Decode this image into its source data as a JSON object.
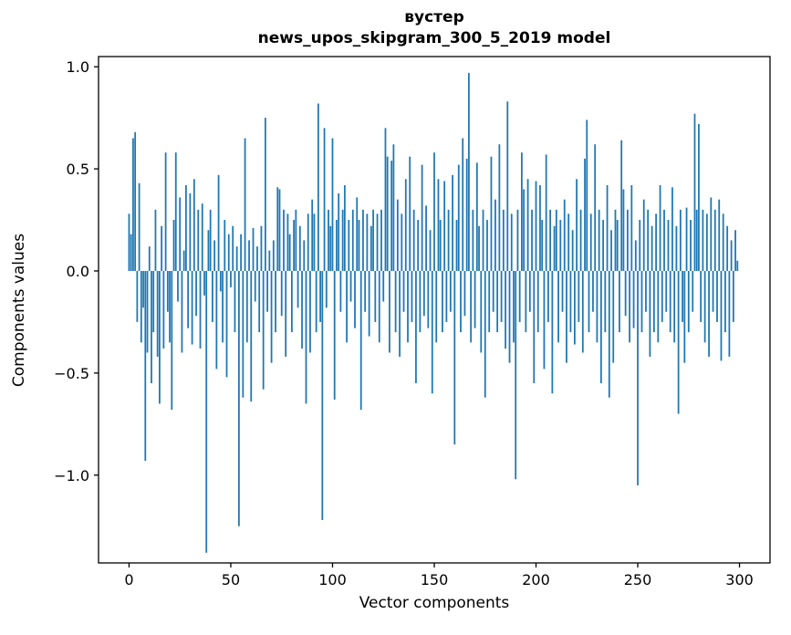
{
  "figure": {
    "title": "вустер",
    "subtitle": "news_upos_skipgram_300_5_2019 model"
  },
  "chart_data": {
    "type": "bar",
    "title": "вустер",
    "subtitle": "news_upos_skipgram_300_5_2019 model",
    "xlabel": "Vector components",
    "ylabel": "Components values",
    "bar_color": "#1f77b4",
    "grid": false,
    "legend": "none",
    "xlim": [
      -15,
      315
    ],
    "ylim": [
      -1.43,
      1.05
    ],
    "x_ticks": [
      0,
      50,
      100,
      150,
      200,
      250,
      300
    ],
    "y_ticks": [
      1.0,
      0.5,
      0.0,
      -0.5,
      -1.0
    ],
    "y_tick_labels": [
      "1.0",
      "0.5",
      "0.0",
      "−0.5",
      "−1.0"
    ],
    "x_start": 0,
    "x_step": 1,
    "values": [
      0.28,
      0.18,
      0.65,
      0.68,
      -0.25,
      0.43,
      -0.35,
      -0.18,
      -0.93,
      -0.4,
      0.12,
      -0.55,
      -0.3,
      0.3,
      -0.42,
      -0.65,
      0.22,
      -0.38,
      0.58,
      -0.2,
      -0.35,
      -0.68,
      0.25,
      0.58,
      -0.15,
      0.36,
      -0.4,
      0.1,
      0.42,
      -0.28,
      0.38,
      -0.36,
      0.45,
      -0.22,
      0.3,
      -0.38,
      0.33,
      -0.12,
      -1.38,
      0.2,
      0.3,
      -0.25,
      0.15,
      -0.48,
      0.47,
      -0.1,
      -0.35,
      0.25,
      -0.52,
      0.18,
      -0.08,
      0.22,
      -0.3,
      0.12,
      -1.25,
      0.18,
      -0.62,
      0.65,
      -0.35,
      0.15,
      -0.64,
      0.21,
      -0.15,
      0.12,
      -0.3,
      0.22,
      -0.58,
      0.75,
      -0.2,
      0.1,
      -0.45,
      0.15,
      -0.3,
      0.41,
      0.4,
      -0.22,
      0.3,
      -0.42,
      0.28,
      0.18,
      -0.3,
      0.25,
      0.3,
      -0.18,
      0.22,
      -0.38,
      0.15,
      -0.65,
      0.28,
      -0.4,
      0.35,
      0.28,
      -0.3,
      0.82,
      -0.25,
      -1.22,
      0.7,
      -0.18,
      0.3,
      0.22,
      0.65,
      -0.63,
      0.25,
      0.38,
      -0.2,
      0.3,
      0.42,
      -0.35,
      0.25,
      -0.15,
      0.3,
      -0.28,
      0.36,
      0.25,
      -0.68,
      0.3,
      -0.2,
      0.28,
      -0.32,
      0.22,
      0.3,
      -0.25,
      0.28,
      -0.35,
      0.3,
      -0.15,
      0.7,
      0.56,
      -0.4,
      0.54,
      0.62,
      -0.3,
      0.35,
      -0.42,
      0.28,
      -0.2,
      0.45,
      -0.35,
      0.56,
      -0.25,
      0.3,
      -0.55,
      0.25,
      -0.3,
      0.52,
      -0.22,
      0.32,
      -0.28,
      0.2,
      -0.6,
      0.58,
      -0.35,
      0.45,
      0.25,
      -0.3,
      0.44,
      -0.25,
      0.3,
      -0.2,
      0.47,
      -0.85,
      0.25,
      0.52,
      -0.3,
      0.65,
      -0.22,
      0.55,
      0.97,
      -0.35,
      0.3,
      -0.28,
      0.53,
      0.22,
      -0.4,
      0.3,
      -0.62,
      0.25,
      -0.3,
      0.56,
      -0.2,
      0.35,
      -0.3,
      0.62,
      -0.25,
      0.3,
      -0.38,
      0.83,
      -0.45,
      0.28,
      -0.35,
      -1.02,
      0.3,
      -0.25,
      0.58,
      0.4,
      -0.3,
      0.45,
      -0.2,
      0.3,
      -0.55,
      0.44,
      -0.3,
      0.42,
      0.25,
      -0.48,
      0.57,
      -0.25,
      0.3,
      -0.6,
      0.22,
      0.3,
      -0.35,
      0.25,
      -0.2,
      0.35,
      -0.45,
      0.28,
      -0.3,
      0.2,
      -0.36,
      0.45,
      -0.25,
      0.3,
      -0.4,
      0.55,
      0.74,
      -0.3,
      0.28,
      -0.2,
      0.62,
      -0.35,
      0.3,
      -0.55,
      0.25,
      -0.3,
      0.42,
      -0.62,
      0.2,
      -0.45,
      0.3,
      0.25,
      -0.3,
      0.64,
      0.4,
      -0.22,
      0.3,
      -0.35,
      0.42,
      -0.28,
      0.15,
      -1.05,
      0.25,
      -0.3,
      0.35,
      -0.2,
      0.3,
      -0.42,
      0.22,
      -0.3,
      0.28,
      -0.35,
      0.42,
      -0.25,
      0.3,
      -0.2,
      0.25,
      -0.3,
      0.41,
      -0.35,
      0.22,
      -0.7,
      0.3,
      -0.25,
      -0.45,
      0.31,
      -0.3,
      0.25,
      -0.2,
      0.77,
      0.3,
      0.72,
      -0.25,
      0.3,
      -0.35,
      0.28,
      -0.42,
      0.36,
      -0.2,
      0.3,
      -0.25,
      0.35,
      -0.44,
      0.28,
      -0.3,
      0.22,
      -0.42,
      0.15,
      -0.25,
      0.2,
      0.05
    ]
  }
}
